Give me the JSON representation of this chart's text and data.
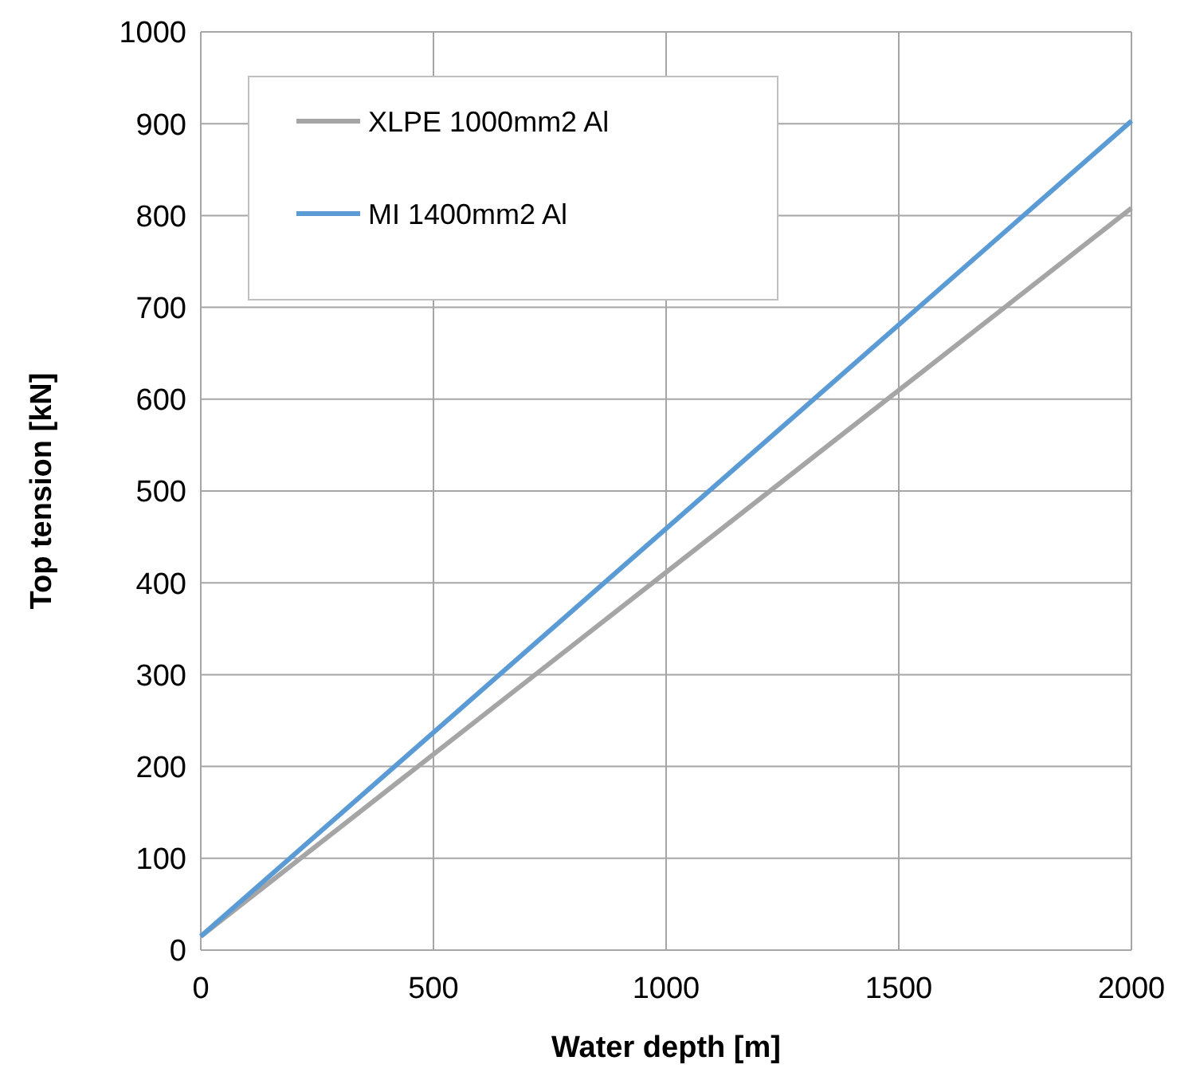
{
  "chart_data": {
    "type": "line",
    "xlabel": "Water depth [m]",
    "ylabel": "Top tension [kN]",
    "x": [
      0,
      2000
    ],
    "series": [
      {
        "name": "XLPE 1000mm2 Al",
        "color": "#a5a5a5",
        "values": [
          15,
          808
        ]
      },
      {
        "name": "MI 1400mm2 Al",
        "color": "#5b9bd5",
        "values": [
          15,
          903
        ]
      }
    ],
    "xlim": [
      0,
      2000
    ],
    "xticks": [
      0,
      500,
      1000,
      1500,
      2000
    ],
    "ylim": [
      0,
      1000
    ],
    "yticks": [
      0,
      100,
      200,
      300,
      400,
      500,
      600,
      700,
      800,
      900,
      1000
    ],
    "grid": true,
    "legend": "top left",
    "marker": "none",
    "line_style": "solid"
  }
}
